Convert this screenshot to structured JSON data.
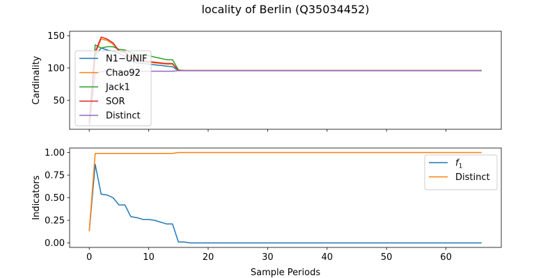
{
  "figure": {
    "title": "locality of Berlin (Q35034452)"
  },
  "chart_data": [
    {
      "type": "line",
      "title": "",
      "xlabel": "",
      "ylabel": "Cardinality",
      "xlim": [
        -3.3,
        69.3
      ],
      "ylim": [
        5,
        157
      ],
      "yticks": [
        50,
        100,
        150
      ],
      "xticks": [
        0,
        10,
        20,
        30,
        40,
        50,
        60
      ],
      "show_x_tick_labels": false,
      "grid": false,
      "legend_position": "left",
      "series": [
        {
          "name": "N1−UNIF",
          "color": "#1f77b4",
          "points": [
            [
              0,
              15
            ],
            [
              1,
              120
            ],
            [
              2,
              131
            ],
            [
              3,
              128
            ],
            [
              4,
              126
            ],
            [
              5,
              123
            ],
            [
              6,
              118
            ],
            [
              7,
              111
            ],
            [
              8,
              108
            ],
            [
              9,
              107
            ],
            [
              10,
              106
            ],
            [
              11,
              105
            ],
            [
              12,
              104
            ],
            [
              13,
              103
            ],
            [
              14,
              102
            ],
            [
              15,
              96
            ],
            [
              16,
              96
            ],
            [
              66,
              96
            ]
          ]
        },
        {
          "name": "Chao92",
          "color": "#ff7f0e",
          "points": [
            [
              0,
              15
            ],
            [
              1,
              122
            ],
            [
              2,
              145
            ],
            [
              3,
              143
            ],
            [
              4,
              137
            ],
            [
              5,
              126
            ],
            [
              6,
              124
            ],
            [
              7,
              115
            ],
            [
              8,
              112
            ],
            [
              9,
              110
            ],
            [
              10,
              109
            ],
            [
              11,
              108
            ],
            [
              12,
              107
            ],
            [
              13,
              106
            ],
            [
              14,
              106
            ],
            [
              15,
              96
            ],
            [
              16,
              96
            ],
            [
              66,
              96
            ]
          ]
        },
        {
          "name": "Jack1",
          "color": "#2ca02c",
          "points": [
            [
              0,
              15
            ],
            [
              1,
              136
            ],
            [
              2,
              131
            ],
            [
              3,
              133
            ],
            [
              4,
              133
            ],
            [
              5,
              129
            ],
            [
              6,
              128
            ],
            [
              7,
              124
            ],
            [
              8,
              121
            ],
            [
              9,
              120
            ],
            [
              10,
              119
            ],
            [
              11,
              117
            ],
            [
              12,
              115
            ],
            [
              13,
              113
            ],
            [
              14,
              113
            ],
            [
              15,
              97
            ],
            [
              16,
              96
            ],
            [
              66,
              96
            ]
          ]
        },
        {
          "name": "SOR",
          "color": "#d62728",
          "points": [
            [
              0,
              15
            ],
            [
              1,
              125
            ],
            [
              2,
              148
            ],
            [
              3,
              145
            ],
            [
              4,
              139
            ],
            [
              5,
              127
            ],
            [
              6,
              125
            ],
            [
              7,
              116
            ],
            [
              8,
              113
            ],
            [
              9,
              111
            ],
            [
              10,
              110
            ],
            [
              11,
              109
            ],
            [
              12,
              108
            ],
            [
              13,
              107
            ],
            [
              14,
              107
            ],
            [
              15,
              96
            ],
            [
              16,
              96
            ],
            [
              66,
              96
            ]
          ]
        },
        {
          "name": "Distinct",
          "color": "#9467bd",
          "points": [
            [
              0,
              10
            ],
            [
              1,
              92
            ],
            [
              2,
              94
            ],
            [
              3,
              95
            ],
            [
              4,
              95
            ],
            [
              5,
              95
            ],
            [
              6,
              95
            ],
            [
              14,
              95
            ],
            [
              15,
              96
            ],
            [
              16,
              96
            ],
            [
              66,
              96
            ]
          ]
        }
      ]
    },
    {
      "type": "line",
      "title": "",
      "xlabel": "Sample Periods",
      "ylabel": "Indicators",
      "xlim": [
        -3.3,
        69.3
      ],
      "ylim": [
        -0.05,
        1.05
      ],
      "yticks": [
        0.0,
        0.25,
        0.5,
        0.75,
        1.0
      ],
      "ytick_labels": [
        "0.00",
        "0.25",
        "0.50",
        "0.75",
        "1.00"
      ],
      "xticks": [
        0,
        10,
        20,
        30,
        40,
        50,
        60
      ],
      "grid": false,
      "legend_position": "upper right",
      "series": [
        {
          "name": "f",
          "name_subscript": "1",
          "color": "#1f77b4",
          "points": [
            [
              0,
              0.13
            ],
            [
              1,
              0.87
            ],
            [
              2,
              0.54
            ],
            [
              3,
              0.53
            ],
            [
              4,
              0.5
            ],
            [
              5,
              0.42
            ],
            [
              6,
              0.42
            ],
            [
              7,
              0.29
            ],
            [
              8,
              0.28
            ],
            [
              9,
              0.26
            ],
            [
              10,
              0.26
            ],
            [
              11,
              0.25
            ],
            [
              12,
              0.23
            ],
            [
              13,
              0.21
            ],
            [
              14,
              0.21
            ],
            [
              15,
              0.01
            ],
            [
              16,
              0.01
            ],
            [
              17,
              0.0
            ],
            [
              66,
              0.0
            ]
          ]
        },
        {
          "name": "Distinct",
          "color": "#ff7f0e",
          "points": [
            [
              0,
              0.13
            ],
            [
              1,
              0.99
            ],
            [
              2,
              0.99
            ],
            [
              14,
              0.99
            ],
            [
              15,
              1.0
            ],
            [
              66,
              1.0
            ]
          ]
        }
      ]
    }
  ]
}
